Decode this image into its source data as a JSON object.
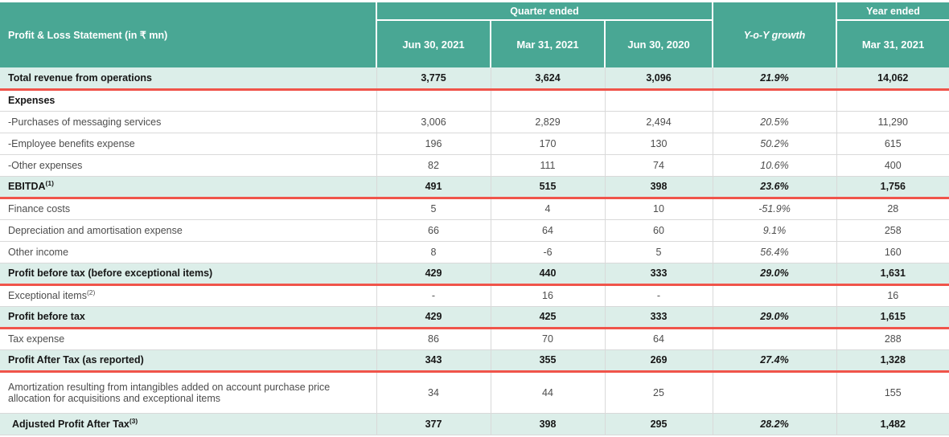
{
  "colors": {
    "header_bg": "#49a794",
    "highlight_bg": "#dceee9",
    "divider_red": "#f0544a",
    "grid_gray": "#d9d9d9",
    "text_gray": "#4d4d4d",
    "text_dark": "#161616"
  },
  "table": {
    "header": {
      "col1": "Profit & Loss Statement (in ₹ mn)",
      "quarter_group": "Quarter ended",
      "quarter_cols": [
        "Jun 30, 2021",
        "Mar 31, 2021",
        "Jun 30, 2020"
      ],
      "yoy": "Y-o-Y growth",
      "year_group": "Year ended",
      "year_col": "Mar 31, 2021"
    },
    "rows": [
      {
        "label": "Total revenue from operations",
        "sup": "",
        "values": [
          "3,775",
          "3,624",
          "3,096"
        ],
        "yoy": "21.9%",
        "year": "14,062",
        "style": "hl",
        "red_bottom": true
      },
      {
        "label": "Expenses",
        "sup": "",
        "values": [
          "",
          "",
          ""
        ],
        "yoy": "",
        "year": "",
        "style": "boldrow"
      },
      {
        "label": "-Purchases of messaging services",
        "sup": "",
        "values": [
          "3,006",
          "2,829",
          "2,494"
        ],
        "yoy": "20.5%",
        "year": "11,290",
        "style": ""
      },
      {
        "label": "-Employee benefits expense",
        "sup": "",
        "values": [
          "196",
          "170",
          "130"
        ],
        "yoy": "50.2%",
        "year": "615",
        "style": ""
      },
      {
        "label": "-Other expenses",
        "sup": "",
        "values": [
          "82",
          "111",
          "74"
        ],
        "yoy": "10.6%",
        "year": "400",
        "style": ""
      },
      {
        "label": "EBITDA",
        "sup": "(1)",
        "values": [
          "491",
          "515",
          "398"
        ],
        "yoy": "23.6%",
        "year": "1,756",
        "style": "hl",
        "red_bottom": true
      },
      {
        "label": "Finance costs",
        "sup": "",
        "values": [
          "5",
          "4",
          "10"
        ],
        "yoy": "-51.9%",
        "year": "28",
        "style": ""
      },
      {
        "label": "Depreciation and amortisation expense",
        "sup": "",
        "values": [
          "66",
          "64",
          "60"
        ],
        "yoy": "9.1%",
        "year": "258",
        "style": ""
      },
      {
        "label": "Other income",
        "sup": "",
        "values": [
          "8",
          "-6",
          "5"
        ],
        "yoy": "56.4%",
        "year": "160",
        "style": ""
      },
      {
        "label": "Profit before tax (before exceptional items)",
        "sup": "",
        "values": [
          "429",
          "440",
          "333"
        ],
        "yoy": "29.0%",
        "year": "1,631",
        "style": "hl",
        "red_bottom": true
      },
      {
        "label": "Exceptional items",
        "sup": "(2)",
        "values": [
          "-",
          "16",
          "-"
        ],
        "yoy": "",
        "year": "16",
        "style": ""
      },
      {
        "label": "Profit before tax",
        "sup": "",
        "values": [
          "429",
          "425",
          "333"
        ],
        "yoy": "29.0%",
        "year": "1,615",
        "style": "hl",
        "red_bottom": true
      },
      {
        "label": "Tax expense",
        "sup": "",
        "values": [
          "86",
          "70",
          "64"
        ],
        "yoy": "",
        "year": "288",
        "style": ""
      },
      {
        "label": "Profit After Tax (as reported)",
        "sup": "",
        "values": [
          "343",
          "355",
          "269"
        ],
        "yoy": "27.4%",
        "year": "1,328",
        "style": "hl",
        "red_bottom": true
      },
      {
        "label": "Amortization resulting from intangibles added on account purchase price allocation for acquisitions and exceptional items",
        "sup": "",
        "values": [
          "34",
          "44",
          "25"
        ],
        "yoy": "",
        "year": "155",
        "style": "",
        "tall": true
      },
      {
        "label": "Adjusted Profit After Tax",
        "sup": "(3)",
        "values": [
          "377",
          "398",
          "295"
        ],
        "yoy": "28.2%",
        "year": "1,482",
        "style": "hl",
        "indent": true
      }
    ]
  }
}
